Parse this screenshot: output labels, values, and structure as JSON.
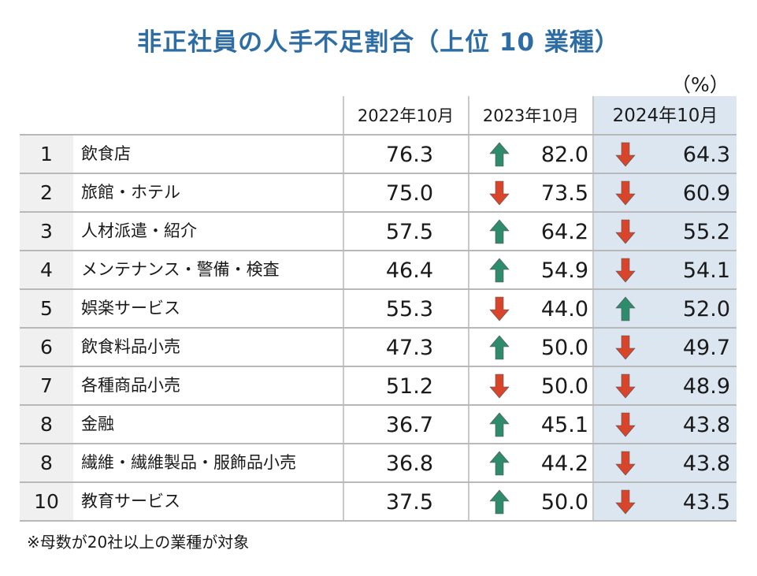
{
  "title": "非正社員の人手不足割合（上位 10 業種）",
  "unit": "（%）",
  "headers": {
    "col_2022": "2022年10月",
    "col_2023": "2023年10月",
    "col_2024": "2024年10月"
  },
  "colors": {
    "title": "#2e6da4",
    "up_arrow": "#2e8b6b",
    "down_arrow": "#d9452b",
    "highlight_column": "#dce6f1",
    "rank_background": "#f0f0f0"
  },
  "rows": [
    {
      "rank": "1",
      "industry": "飲食店",
      "v2022": "76.3",
      "v2023": "82.0",
      "t2023": "up",
      "v2024": "64.3",
      "t2024": "down"
    },
    {
      "rank": "2",
      "industry": "旅館・ホテル",
      "v2022": "75.0",
      "v2023": "73.5",
      "t2023": "down",
      "v2024": "60.9",
      "t2024": "down"
    },
    {
      "rank": "3",
      "industry": "人材派遣・紹介",
      "v2022": "57.5",
      "v2023": "64.2",
      "t2023": "up",
      "v2024": "55.2",
      "t2024": "down"
    },
    {
      "rank": "4",
      "industry": "メンテナンス・警備・検査",
      "v2022": "46.4",
      "v2023": "54.9",
      "t2023": "up",
      "v2024": "54.1",
      "t2024": "down"
    },
    {
      "rank": "5",
      "industry": "娯楽サービス",
      "v2022": "55.3",
      "v2023": "44.0",
      "t2023": "down",
      "v2024": "52.0",
      "t2024": "up"
    },
    {
      "rank": "6",
      "industry": "飲食料品小売",
      "v2022": "47.3",
      "v2023": "50.0",
      "t2023": "up",
      "v2024": "49.7",
      "t2024": "down"
    },
    {
      "rank": "7",
      "industry": "各種商品小売",
      "v2022": "51.2",
      "v2023": "50.0",
      "t2023": "down",
      "v2024": "48.9",
      "t2024": "down"
    },
    {
      "rank": "8",
      "industry": "金融",
      "v2022": "36.7",
      "v2023": "45.1",
      "t2023": "up",
      "v2024": "43.8",
      "t2024": "down"
    },
    {
      "rank": "8",
      "industry": "繊維・繊維製品・服飾品小売",
      "v2022": "36.8",
      "v2023": "44.2",
      "t2023": "up",
      "v2024": "43.8",
      "t2024": "down"
    },
    {
      "rank": "10",
      "industry": "教育サービス",
      "v2022": "37.5",
      "v2023": "50.0",
      "t2023": "up",
      "v2024": "43.5",
      "t2024": "down"
    }
  ],
  "note": "※母数が20社以上の業種が対象"
}
